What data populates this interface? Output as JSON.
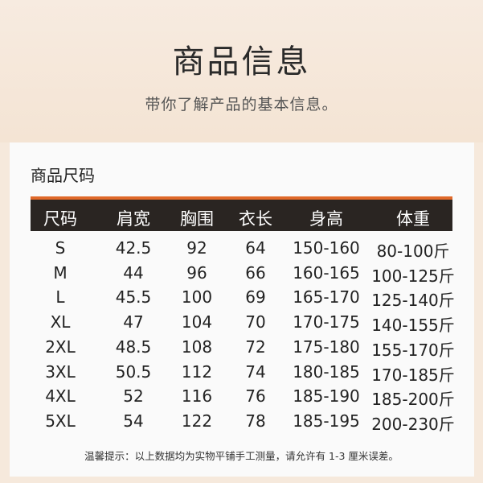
{
  "header": {
    "title": "商品信息",
    "subtitle": "带你了解产品的基本信息。"
  },
  "size_table": {
    "section_title": "商品尺码",
    "accent_color": "#e0692a",
    "header_bg": "#2a2522",
    "columns": [
      "尺码",
      "肩宽",
      "胸围",
      "衣长",
      "身高",
      "体重"
    ],
    "rows": [
      [
        "S",
        "42.5",
        "92",
        "64",
        "150-160",
        "80-100斤"
      ],
      [
        "M",
        "44",
        "96",
        "66",
        "160-165",
        "100-125斤"
      ],
      [
        "L",
        "45.5",
        "100",
        "69",
        "165-170",
        "125-140斤"
      ],
      [
        "XL",
        "47",
        "104",
        "70",
        "170-175",
        "140-155斤"
      ],
      [
        "2XL",
        "48.5",
        "108",
        "72",
        "175-180",
        "155-170斤"
      ],
      [
        "3XL",
        "50.5",
        "112",
        "74",
        "180-185",
        "170-185斤"
      ],
      [
        "4XL",
        "52",
        "116",
        "76",
        "185-190",
        "185-200斤"
      ],
      [
        "5XL",
        "54",
        "122",
        "78",
        "185-195",
        "200-230斤"
      ]
    ],
    "note": "温馨提示：以上数据均为实物平铺手工测量，请允许有 1-3 厘米误差。"
  }
}
